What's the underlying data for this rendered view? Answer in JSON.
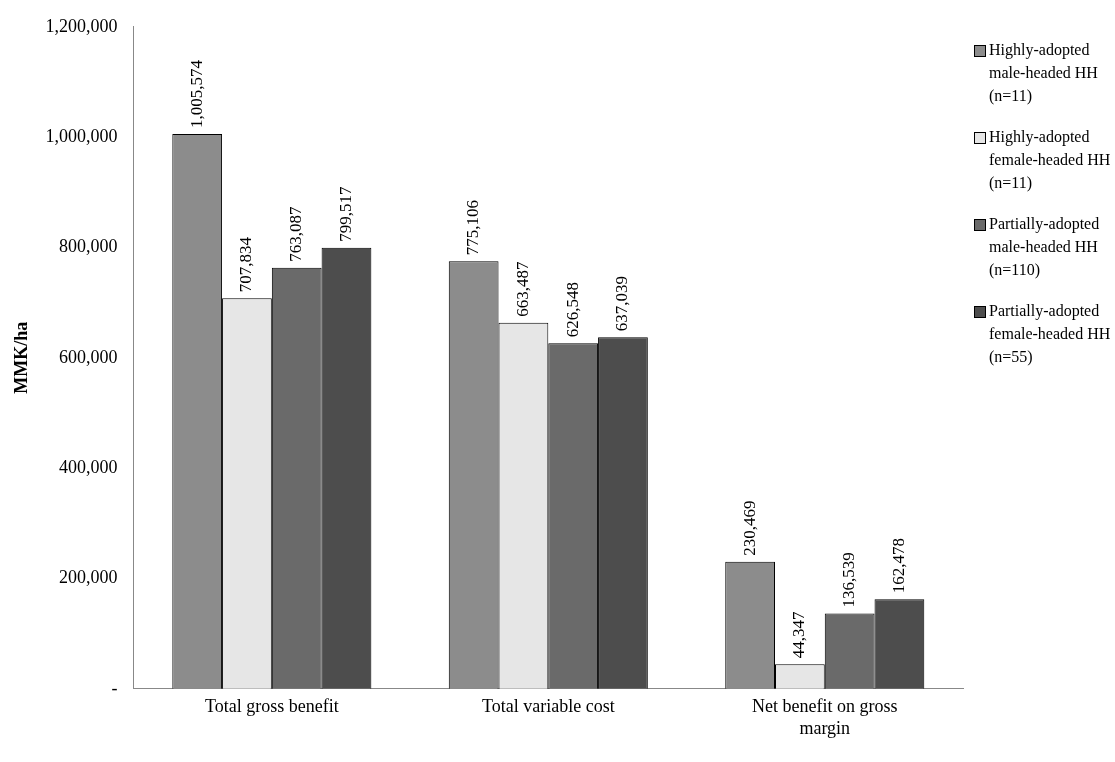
{
  "chart_data": {
    "type": "bar",
    "ylabel": "MMK/ha",
    "categories": [
      "Total gross benefit",
      "Total variable cost",
      "Net benefit on gross margin"
    ],
    "series": [
      {
        "name": "Highly-adopted male-headed HH (n=11)",
        "color": "#8c8c8c",
        "values": [
          1005574,
          775106,
          230469
        ],
        "value_labels": [
          "1,005,574",
          "775,106",
          "230,469"
        ]
      },
      {
        "name": "Highly-adopted female-headed HH (n=11)",
        "color": "#e6e6e6",
        "values": [
          707834,
          663487,
          44347
        ],
        "value_labels": [
          "707,834",
          "663,487",
          "44,347"
        ]
      },
      {
        "name": "Partially-adopted male-headed HH (n=110)",
        "color": "#6a6a6a",
        "values": [
          763087,
          626548,
          136539
        ],
        "value_labels": [
          "763,087",
          "626,548",
          "136,539"
        ]
      },
      {
        "name": "Partially-adopted female-headed HH (n=55)",
        "color": "#4d4d4d",
        "values": [
          799517,
          637039,
          162478
        ],
        "value_labels": [
          "799,517",
          "637,039",
          "162,478"
        ]
      }
    ],
    "ylim": [
      0,
      1200000
    ],
    "yticks": [
      {
        "value": 0,
        "label": "-"
      },
      {
        "value": 200000,
        "label": "200,000"
      },
      {
        "value": 400000,
        "label": "400,000"
      },
      {
        "value": 600000,
        "label": "600,000"
      },
      {
        "value": 800000,
        "label": "800,000"
      },
      {
        "value": 1000000,
        "label": "1,000,000"
      },
      {
        "value": 1200000,
        "label": "1,200,000"
      }
    ],
    "legend": "right"
  }
}
